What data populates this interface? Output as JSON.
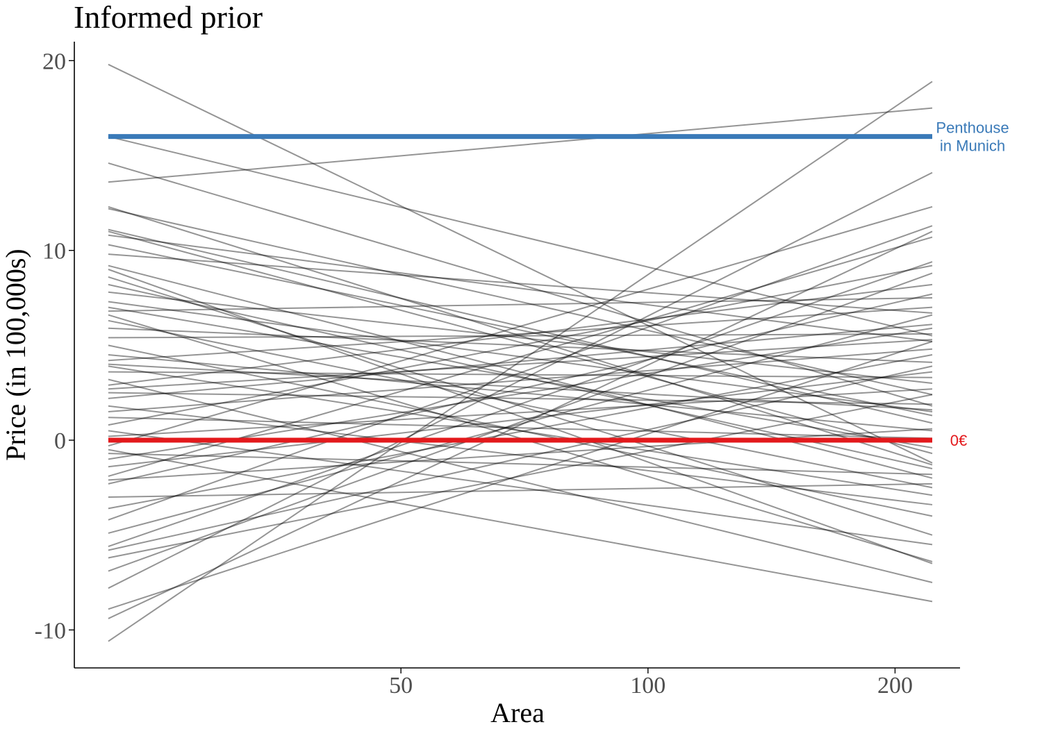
{
  "chart_data": {
    "type": "line",
    "title": "Informed prior",
    "xlabel": "Area",
    "ylabel": "Price (in 100,000s)",
    "x_scale": "log",
    "xlim": [
      20,
      240
    ],
    "ylim": [
      -12,
      21
    ],
    "x_ticks": [
      50,
      100,
      200
    ],
    "x_tick_labels": [
      "50",
      "100",
      "200"
    ],
    "y_ticks": [
      -10,
      0,
      10,
      20
    ],
    "y_tick_labels": [
      "-10",
      "0",
      "10",
      "20"
    ],
    "x_range": [
      22,
      222
    ],
    "grid": false,
    "legend": "none",
    "colors": {
      "prior_lines": "#000000",
      "reference_high": "#3a7ab8",
      "reference_zero": "#e3191c",
      "text_tick": "#4d4d4d"
    },
    "reference_lines": [
      {
        "name": "penthouse",
        "y": 16,
        "color": "#3a7ab8",
        "label_lines": [
          "Penthouse",
          "in Munich"
        ]
      },
      {
        "name": "zero",
        "y": 0,
        "color": "#e3191c",
        "label_lines": [
          "0€"
        ]
      }
    ],
    "series": [
      {
        "y_start": 19.8,
        "y_end": -1.2
      },
      {
        "y_start": 16.0,
        "y_end": 5.5
      },
      {
        "y_start": 14.6,
        "y_end": 1.8
      },
      {
        "y_start": 13.6,
        "y_end": 17.5
      },
      {
        "y_start": 12.3,
        "y_end": -1.3
      },
      {
        "y_start": 12.2,
        "y_end": 2.4
      },
      {
        "y_start": 11.0,
        "y_end": -0.7
      },
      {
        "y_start": 10.8,
        "y_end": 5.2
      },
      {
        "y_start": 10.3,
        "y_end": 1.3
      },
      {
        "y_start": 9.8,
        "y_end": 6.7
      },
      {
        "y_start": 9.2,
        "y_end": -2.0
      },
      {
        "y_start": 9.0,
        "y_end": -6.5
      },
      {
        "y_start": 8.6,
        "y_end": -5.0
      },
      {
        "y_start": 8.2,
        "y_end": -1.5
      },
      {
        "y_start": 7.8,
        "y_end": 3.0
      },
      {
        "y_start": 7.3,
        "y_end": 1.5
      },
      {
        "y_start": 6.8,
        "y_end": 7.5
      },
      {
        "y_start": 6.6,
        "y_end": -6.4
      },
      {
        "y_start": 6.3,
        "y_end": -2.5
      },
      {
        "y_start": 5.9,
        "y_end": 4.1
      },
      {
        "y_start": 5.4,
        "y_end": 5.6
      },
      {
        "y_start": 5.0,
        "y_end": -4.0
      },
      {
        "y_start": 4.5,
        "y_end": 0.5
      },
      {
        "y_start": 4.2,
        "y_end": 7.0
      },
      {
        "y_start": 3.9,
        "y_end": -2.9
      },
      {
        "y_start": 3.6,
        "y_end": 3.3
      },
      {
        "y_start": 3.2,
        "y_end": -7.5
      },
      {
        "y_start": 2.9,
        "y_end": 8.2
      },
      {
        "y_start": 2.5,
        "y_end": 1.9
      },
      {
        "y_start": 2.2,
        "y_end": 6.1
      },
      {
        "y_start": 1.8,
        "y_end": -3.4
      },
      {
        "y_start": 1.5,
        "y_end": 4.8
      },
      {
        "y_start": 1.2,
        "y_end": 0.1
      },
      {
        "y_start": 0.8,
        "y_end": 9.2
      },
      {
        "y_start": 0.5,
        "y_end": -5.5
      },
      {
        "y_start": 0.2,
        "y_end": 2.7
      },
      {
        "y_start": -0.3,
        "y_end": 12.3
      },
      {
        "y_start": -0.7,
        "y_end": -1.8
      },
      {
        "y_start": -1.0,
        "y_end": 5.9
      },
      {
        "y_start": -1.4,
        "y_end": 3.6
      },
      {
        "y_start": -1.9,
        "y_end": 10.7
      },
      {
        "y_start": -2.3,
        "y_end": 7.7
      },
      {
        "y_start": -3.0,
        "y_end": -2.3
      },
      {
        "y_start": -3.6,
        "y_end": 4.5
      },
      {
        "y_start": -4.2,
        "y_end": 11.3
      },
      {
        "y_start": -4.9,
        "y_end": 6.6
      },
      {
        "y_start": -5.6,
        "y_end": 9.4
      },
      {
        "y_start": -6.2,
        "y_end": 2.4
      },
      {
        "y_start": -6.9,
        "y_end": 8.8
      },
      {
        "y_start": -7.8,
        "y_end": 14.1
      },
      {
        "y_start": -8.9,
        "y_end": 5.2
      },
      {
        "y_start": -9.4,
        "y_end": 11.0
      },
      {
        "y_start": -10.6,
        "y_end": 18.9
      },
      {
        "y_start": 11.1,
        "y_end": 0.9
      },
      {
        "y_start": 7.0,
        "y_end": -0.4
      },
      {
        "y_start": 4.0,
        "y_end": 1.6
      },
      {
        "y_start": 2.7,
        "y_end": 5.3
      },
      {
        "y_start": -0.5,
        "y_end": -8.5
      },
      {
        "y_start": -2.1,
        "y_end": 0.6
      },
      {
        "y_start": -5.8,
        "y_end": 3.9
      }
    ]
  }
}
